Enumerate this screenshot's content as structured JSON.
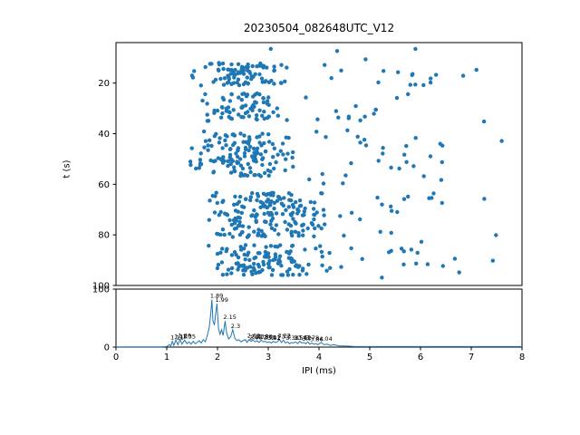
{
  "figure": {
    "title": "20230504_082648UTC_V12",
    "xlabel": "IPI (ms)",
    "ylabel_main": "t (s)"
  },
  "chart_data": [
    {
      "type": "scatter",
      "title": "20230504_082648UTC_V12",
      "xlabel": "",
      "ylabel": "t (s)",
      "xlim": [
        0,
        8
      ],
      "ylim": [
        100,
        4
      ],
      "yticks": [
        20,
        40,
        60,
        80,
        100
      ],
      "grid": false,
      "legend": "none",
      "marker_color": "#1f77b4",
      "clusters": [
        {
          "t": [
            12,
            21
          ],
          "ipi": [
            1.4,
            3.6
          ],
          "count": 90
        },
        {
          "t": [
            12,
            21
          ],
          "ipi": [
            3.6,
            7.6
          ],
          "count": 14
        },
        {
          "t": [
            24,
            35
          ],
          "ipi": [
            1.6,
            3.4
          ],
          "count": 75
        },
        {
          "t": [
            24,
            35
          ],
          "ipi": [
            3.4,
            6.2
          ],
          "count": 10
        },
        {
          "t": [
            40,
            57
          ],
          "ipi": [
            1.3,
            3.6
          ],
          "count": 140
        },
        {
          "t": [
            40,
            57
          ],
          "ipi": [
            3.6,
            8.0
          ],
          "count": 18
        },
        {
          "t": [
            63,
            81
          ],
          "ipi": [
            1.7,
            4.3
          ],
          "count": 185
        },
        {
          "t": [
            63,
            81
          ],
          "ipi": [
            4.3,
            7.0
          ],
          "count": 12
        },
        {
          "t": [
            84,
            96
          ],
          "ipi": [
            1.7,
            4.3
          ],
          "count": 120
        },
        {
          "t": [
            84,
            96
          ],
          "ipi": [
            4.3,
            7.9
          ],
          "count": 12
        },
        {
          "t": [
            5,
            100
          ],
          "ipi": [
            1.0,
            8.0
          ],
          "count": 45
        }
      ],
      "extra_points": [
        [
          3.05,
          6.5
        ],
        [
          5.9,
          6.5
        ]
      ]
    },
    {
      "type": "line",
      "title": "",
      "xlabel": "IPI (ms)",
      "ylabel": "",
      "xlim": [
        0,
        8
      ],
      "ylim": [
        0,
        100
      ],
      "xticks": [
        0,
        1,
        2,
        3,
        4,
        5,
        6,
        7,
        8
      ],
      "yticks": [
        0,
        100
      ],
      "grid": false,
      "line_color": "#1f77b4",
      "points": [
        [
          0,
          0.3
        ],
        [
          0.5,
          0.3
        ],
        [
          0.9,
          0.5
        ],
        [
          1.0,
          1
        ],
        [
          1.05,
          4
        ],
        [
          1.08,
          2
        ],
        [
          1.11,
          10
        ],
        [
          1.14,
          3
        ],
        [
          1.18,
          12
        ],
        [
          1.22,
          4
        ],
        [
          1.26,
          13
        ],
        [
          1.3,
          5
        ],
        [
          1.35,
          12
        ],
        [
          1.4,
          6
        ],
        [
          1.44,
          9
        ],
        [
          1.48,
          5
        ],
        [
          1.52,
          10
        ],
        [
          1.56,
          6
        ],
        [
          1.6,
          8
        ],
        [
          1.64,
          11
        ],
        [
          1.68,
          7
        ],
        [
          1.72,
          13
        ],
        [
          1.76,
          9
        ],
        [
          1.8,
          20
        ],
        [
          1.84,
          35
        ],
        [
          1.87,
          60
        ],
        [
          1.89,
          82
        ],
        [
          1.91,
          45
        ],
        [
          1.94,
          38
        ],
        [
          1.96,
          55
        ],
        [
          1.99,
          75
        ],
        [
          2.02,
          32
        ],
        [
          2.05,
          22
        ],
        [
          2.08,
          30
        ],
        [
          2.11,
          20
        ],
        [
          2.15,
          45
        ],
        [
          2.18,
          24
        ],
        [
          2.22,
          14
        ],
        [
          2.26,
          18
        ],
        [
          2.3,
          30
        ],
        [
          2.34,
          16
        ],
        [
          2.38,
          11
        ],
        [
          2.42,
          13
        ],
        [
          2.46,
          9
        ],
        [
          2.5,
          11
        ],
        [
          2.55,
          13
        ],
        [
          2.58,
          8
        ],
        [
          2.62,
          13
        ],
        [
          2.66,
          10
        ],
        [
          2.7,
          12
        ],
        [
          2.74,
          9
        ],
        [
          2.78,
          11
        ],
        [
          2.82,
          8
        ],
        [
          2.86,
          12
        ],
        [
          2.9,
          9
        ],
        [
          2.94,
          10
        ],
        [
          2.98,
          8
        ],
        [
          3.02,
          9
        ],
        [
          3.06,
          7
        ],
        [
          3.1,
          10
        ],
        [
          3.14,
          8
        ],
        [
          3.18,
          9
        ],
        [
          3.22,
          13
        ],
        [
          3.26,
          8
        ],
        [
          3.3,
          12
        ],
        [
          3.34,
          7
        ],
        [
          3.38,
          9
        ],
        [
          3.42,
          6
        ],
        [
          3.46,
          8
        ],
        [
          3.5,
          7
        ],
        [
          3.54,
          9
        ],
        [
          3.58,
          6
        ],
        [
          3.62,
          10
        ],
        [
          3.66,
          7
        ],
        [
          3.7,
          8
        ],
        [
          3.74,
          6
        ],
        [
          3.78,
          9
        ],
        [
          3.82,
          5
        ],
        [
          3.86,
          7
        ],
        [
          3.9,
          5
        ],
        [
          3.94,
          6
        ],
        [
          3.98,
          4
        ],
        [
          4.04,
          8
        ],
        [
          4.1,
          4
        ],
        [
          4.16,
          5
        ],
        [
          4.22,
          3
        ],
        [
          4.3,
          4
        ],
        [
          4.4,
          2
        ],
        [
          4.5,
          2
        ],
        [
          4.7,
          1
        ],
        [
          5,
          1
        ],
        [
          5.3,
          1
        ],
        [
          5.6,
          1
        ],
        [
          6,
          1
        ],
        [
          6.4,
          1
        ],
        [
          6.8,
          1
        ],
        [
          7.2,
          1
        ],
        [
          7.6,
          1
        ],
        [
          8,
          1
        ]
      ],
      "annotations": [
        {
          "x": 1.11,
          "y": 10,
          "label": "1.11"
        },
        {
          "x": 1.18,
          "y": 12,
          "label": "1.18"
        },
        {
          "x": 1.26,
          "y": 13,
          "label": "1.26"
        },
        {
          "x": 1.35,
          "y": 12,
          "label": "1.35"
        },
        {
          "x": 1.89,
          "y": 82,
          "label": "1.89"
        },
        {
          "x": 1.99,
          "y": 75,
          "label": "1.99"
        },
        {
          "x": 2.15,
          "y": 45,
          "label": "2.15"
        },
        {
          "x": 2.3,
          "y": 30,
          "label": "2.3"
        },
        {
          "x": 2.62,
          "y": 13,
          "label": "2.62"
        },
        {
          "x": 2.66,
          "y": 10,
          "label": "2.66"
        },
        {
          "x": 2.7,
          "y": 12,
          "label": "2.7"
        },
        {
          "x": 2.78,
          "y": 11,
          "label": "2.78"
        },
        {
          "x": 2.86,
          "y": 12,
          "label": "2.86"
        },
        {
          "x": 2.94,
          "y": 10,
          "label": "2.94"
        },
        {
          "x": 3.02,
          "y": 9,
          "label": "3.02"
        },
        {
          "x": 3.1,
          "y": 10,
          "label": "3.1"
        },
        {
          "x": 3.22,
          "y": 13,
          "label": "3.22"
        },
        {
          "x": 3.3,
          "y": 12,
          "label": "3.3"
        },
        {
          "x": 3.38,
          "y": 9,
          "label": "3.38"
        },
        {
          "x": 3.54,
          "y": 9,
          "label": "3.54"
        },
        {
          "x": 3.62,
          "y": 10,
          "label": "3.62"
        },
        {
          "x": 3.7,
          "y": 8,
          "label": "3.7"
        },
        {
          "x": 3.78,
          "y": 9,
          "label": "3.78"
        },
        {
          "x": 3.86,
          "y": 7,
          "label": "3.86"
        },
        {
          "x": 4.04,
          "y": 8,
          "label": "4.04"
        }
      ]
    }
  ]
}
